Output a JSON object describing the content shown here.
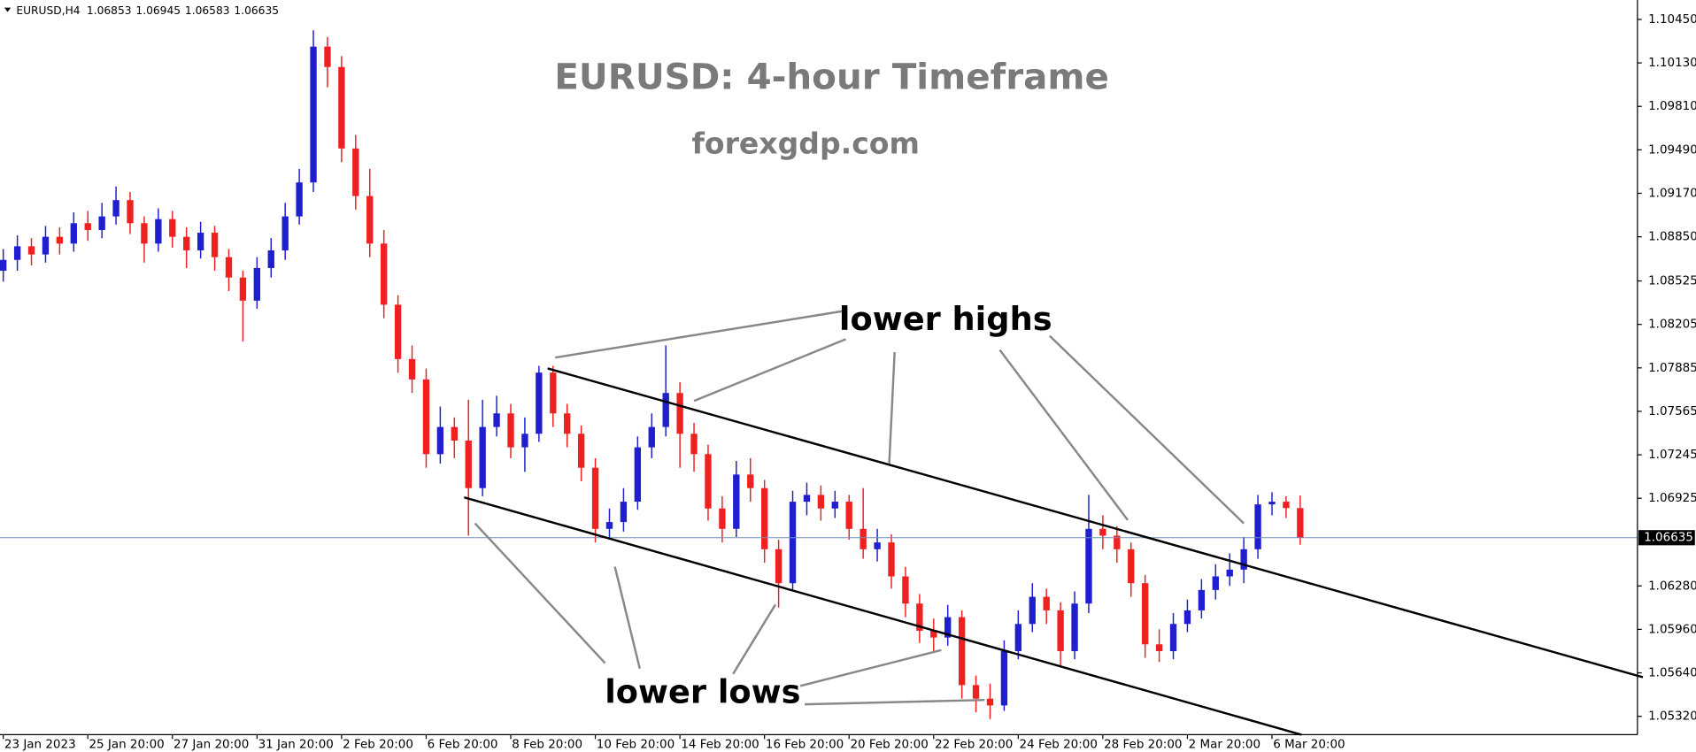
{
  "chart_data": {
    "type": "candlestick",
    "symbol": "EURUSD,H4",
    "header_values": [
      1.06853,
      1.06945,
      1.06583,
      1.06635
    ],
    "title": "EURUSD: 4-hour Timeframe",
    "subtitle": "forexgdp.com",
    "annotations": [
      "lower highs",
      "lower lows"
    ],
    "up_color": "#1f1fd0",
    "down_color": "#ee2020",
    "current_price": 1.06635,
    "ylim": [
      1.05185,
      1.10593
    ],
    "yticks": [
      {
        "value": 1.1045,
        "label": "1.10450"
      },
      {
        "value": 1.1013,
        "label": "1.10130"
      },
      {
        "value": 1.0981,
        "label": "1.09810"
      },
      {
        "value": 1.0949,
        "label": "1.09490"
      },
      {
        "value": 1.0917,
        "label": "1.09170"
      },
      {
        "value": 1.0885,
        "label": "1.08850"
      },
      1.08525,
      1.08205,
      1.07885,
      1.07565,
      1.07245,
      1.06925,
      {
        "value": 1.0628,
        "label": "1.06280"
      },
      {
        "value": 1.0596,
        "label": "1.05960"
      },
      {
        "value": 1.0564,
        "label": "1.05640"
      },
      {
        "value": 1.0532,
        "label": "1.05320"
      }
    ],
    "xticks": [
      {
        "value": 0,
        "label": "23 Jan 2023"
      },
      {
        "value": 6,
        "label": "25 Jan 20:00"
      },
      {
        "value": 12,
        "label": "27 Jan 20:00"
      },
      {
        "value": 18,
        "label": "31 Jan 20:00"
      },
      {
        "value": 24,
        "label": "2 Feb 20:00"
      },
      {
        "value": 30,
        "label": "6 Feb 20:00"
      },
      {
        "value": 36,
        "label": "8 Feb 20:00"
      },
      {
        "value": 42,
        "label": "10 Feb 20:00"
      },
      {
        "value": 48,
        "label": "14 Feb 20:00"
      },
      {
        "value": 54,
        "label": "16 Feb 20:00"
      },
      {
        "value": 60,
        "label": "20 Feb 20:00"
      },
      {
        "value": 66,
        "label": "22 Feb 20:00"
      },
      {
        "value": 72,
        "label": "24 Feb 20:00"
      },
      {
        "value": 78,
        "label": "28 Feb 20:00"
      },
      {
        "value": 84,
        "label": "2 Mar 20:00"
      },
      {
        "value": 90,
        "label": "6 Mar 20:00"
      }
    ],
    "open": [
      1.086,
      1.0868,
      1.0878,
      1.0872,
      1.0885,
      1.088,
      1.0895,
      1.089,
      1.09,
      1.0912,
      1.0895,
      1.088,
      1.0898,
      1.0885,
      1.0875,
      1.0888,
      1.087,
      1.0855,
      1.0838,
      1.0862,
      1.0875,
      1.09,
      1.0925,
      1.1025,
      1.101,
      1.095,
      1.0915,
      1.088,
      1.0835,
      1.0795,
      1.078,
      1.0725,
      1.0745,
      1.0735,
      1.07,
      1.0745,
      1.0755,
      1.073,
      1.074,
      1.0785,
      1.0755,
      1.074,
      1.0715,
      1.067,
      1.0675,
      1.069,
      1.073,
      1.0745,
      1.077,
      1.074,
      1.0725,
      1.0685,
      1.067,
      1.071,
      1.07,
      1.0655,
      1.063,
      1.069,
      1.0695,
      1.0685,
      1.069,
      1.067,
      1.0655,
      1.066,
      1.0635,
      1.0615,
      1.0595,
      1.059,
      1.0605,
      1.0555,
      1.0545,
      1.054,
      1.058,
      1.06,
      1.062,
      1.061,
      1.058,
      1.0615,
      1.067,
      1.0665,
      1.0655,
      1.063,
      1.0585,
      1.058,
      1.06,
      1.061,
      1.0625,
      1.0635,
      1.064,
      1.0655,
      1.0688,
      1.069,
      1.06853
    ],
    "high": [
      1.0876,
      1.0886,
      1.0884,
      1.0893,
      1.0892,
      1.0903,
      1.0904,
      1.091,
      1.0922,
      1.0918,
      1.09,
      1.0906,
      1.0904,
      1.0892,
      1.0896,
      1.0893,
      1.0876,
      1.086,
      1.087,
      1.0884,
      1.091,
      1.0935,
      1.1037,
      1.1032,
      1.1018,
      1.096,
      1.0935,
      1.089,
      1.0842,
      1.0805,
      1.0788,
      1.076,
      1.0752,
      1.0765,
      1.0765,
      1.0768,
      1.0762,
      1.0752,
      1.079,
      1.079,
      1.0762,
      1.0746,
      1.0722,
      1.0685,
      1.07,
      1.0738,
      1.0755,
      1.0805,
      1.0778,
      1.0748,
      1.0732,
      1.0694,
      1.072,
      1.0722,
      1.0706,
      1.0662,
      1.0698,
      1.0704,
      1.0702,
      1.0698,
      1.0695,
      1.07,
      1.067,
      1.0666,
      1.0642,
      1.0622,
      1.0604,
      1.0614,
      1.061,
      1.0562,
      1.0556,
      1.0588,
      1.061,
      1.063,
      1.0626,
      1.0616,
      1.0624,
      1.0695,
      1.068,
      1.0672,
      1.066,
      1.0636,
      1.0596,
      1.0608,
      1.0618,
      1.0633,
      1.0644,
      1.0652,
      1.0664,
      1.0695,
      1.0697,
      1.0694,
      1.06945
    ],
    "low": [
      1.0852,
      1.086,
      1.0864,
      1.0866,
      1.0872,
      1.0874,
      1.0882,
      1.0884,
      1.0894,
      1.0887,
      1.0866,
      1.0874,
      1.0877,
      1.0862,
      1.0869,
      1.086,
      1.0845,
      1.0808,
      1.0832,
      1.0855,
      1.0868,
      1.0894,
      1.0918,
      1.0995,
      1.094,
      1.0905,
      1.087,
      1.0825,
      1.0785,
      1.077,
      1.0715,
      1.0718,
      1.0722,
      1.0665,
      1.0694,
      1.0738,
      1.0722,
      1.0712,
      1.0734,
      1.0745,
      1.073,
      1.0705,
      1.066,
      1.0662,
      1.0668,
      1.0684,
      1.0722,
      1.0738,
      1.0715,
      1.0712,
      1.0676,
      1.066,
      1.0664,
      1.069,
      1.0645,
      1.0612,
      1.0624,
      1.068,
      1.0676,
      1.0678,
      1.0662,
      1.0648,
      1.0646,
      1.0626,
      1.0605,
      1.0586,
      1.058,
      1.0584,
      1.0545,
      1.0535,
      1.053,
      1.0536,
      1.0574,
      1.0594,
      1.06,
      1.0568,
      1.0574,
      1.0608,
      1.0655,
      1.0645,
      1.062,
      1.0575,
      1.0572,
      1.0574,
      1.0594,
      1.0604,
      1.0618,
      1.0628,
      1.063,
      1.0648,
      1.068,
      1.0678,
      1.06583
    ],
    "close": [
      1.0868,
      1.0878,
      1.0872,
      1.0885,
      1.088,
      1.0895,
      1.089,
      1.09,
      1.0912,
      1.0895,
      1.088,
      1.0898,
      1.0885,
      1.0875,
      1.0888,
      1.087,
      1.0855,
      1.0838,
      1.0862,
      1.0875,
      1.09,
      1.0925,
      1.1025,
      1.101,
      1.095,
      1.0915,
      1.088,
      1.0835,
      1.0795,
      1.078,
      1.0725,
      1.0745,
      1.0735,
      1.07,
      1.0745,
      1.0755,
      1.073,
      1.074,
      1.0785,
      1.0755,
      1.074,
      1.0715,
      1.067,
      1.0675,
      1.069,
      1.073,
      1.0745,
      1.077,
      1.074,
      1.0725,
      1.0685,
      1.067,
      1.071,
      1.07,
      1.0655,
      1.063,
      1.069,
      1.0695,
      1.0685,
      1.069,
      1.067,
      1.0655,
      1.066,
      1.0635,
      1.0615,
      1.0595,
      1.059,
      1.0605,
      1.0555,
      1.0545,
      1.054,
      1.058,
      1.06,
      1.062,
      1.061,
      1.058,
      1.0615,
      1.067,
      1.0665,
      1.0655,
      1.063,
      1.0585,
      1.058,
      1.06,
      1.061,
      1.0625,
      1.0635,
      1.064,
      1.0655,
      1.0688,
      1.069,
      1.06853,
      1.06635
    ]
  }
}
